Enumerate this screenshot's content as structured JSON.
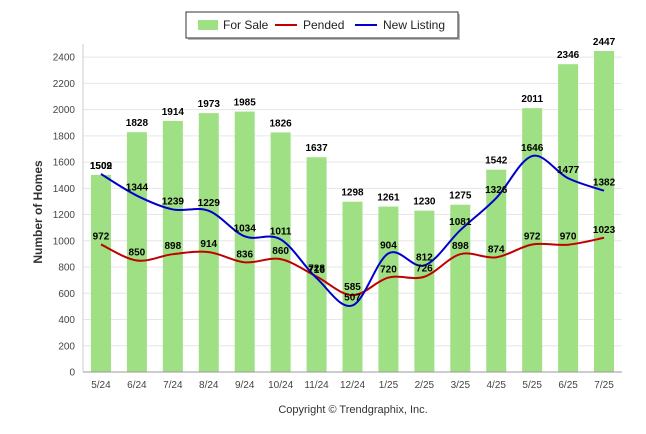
{
  "chart_data": {
    "type": "bar",
    "categories": [
      "5/24",
      "6/24",
      "7/24",
      "8/24",
      "9/24",
      "10/24",
      "11/24",
      "12/24",
      "1/25",
      "2/25",
      "3/25",
      "4/25",
      "5/25",
      "6/25",
      "7/25"
    ],
    "series": [
      {
        "name": "For Sale",
        "type": "bar",
        "color": "#9ee083",
        "values": [
          1502,
          1828,
          1914,
          1973,
          1985,
          1826,
          1637,
          1298,
          1261,
          1230,
          1275,
          1542,
          2011,
          2346,
          2447
        ]
      },
      {
        "name": "Pended",
        "type": "line",
        "color": "#c00000",
        "values": [
          972,
          850,
          898,
          914,
          836,
          860,
          728,
          585,
          720,
          726,
          898,
          874,
          972,
          970,
          1023
        ]
      },
      {
        "name": "New Listing",
        "type": "line",
        "color": "#0000cc",
        "values": [
          1509,
          1344,
          1239,
          1229,
          1034,
          1011,
          716,
          507,
          904,
          812,
          1081,
          1326,
          1646,
          1477,
          1382
        ]
      }
    ],
    "ylabel": "Number of Homes",
    "ylim": [
      0,
      2500
    ],
    "yticks": [
      0,
      200,
      400,
      600,
      800,
      1000,
      1200,
      1400,
      1600,
      1800,
      2000,
      2200,
      2400
    ],
    "grid": true,
    "legend_position": "top-center"
  },
  "footer": {
    "copyright": "Copyright © Trendgraphix, Inc."
  }
}
